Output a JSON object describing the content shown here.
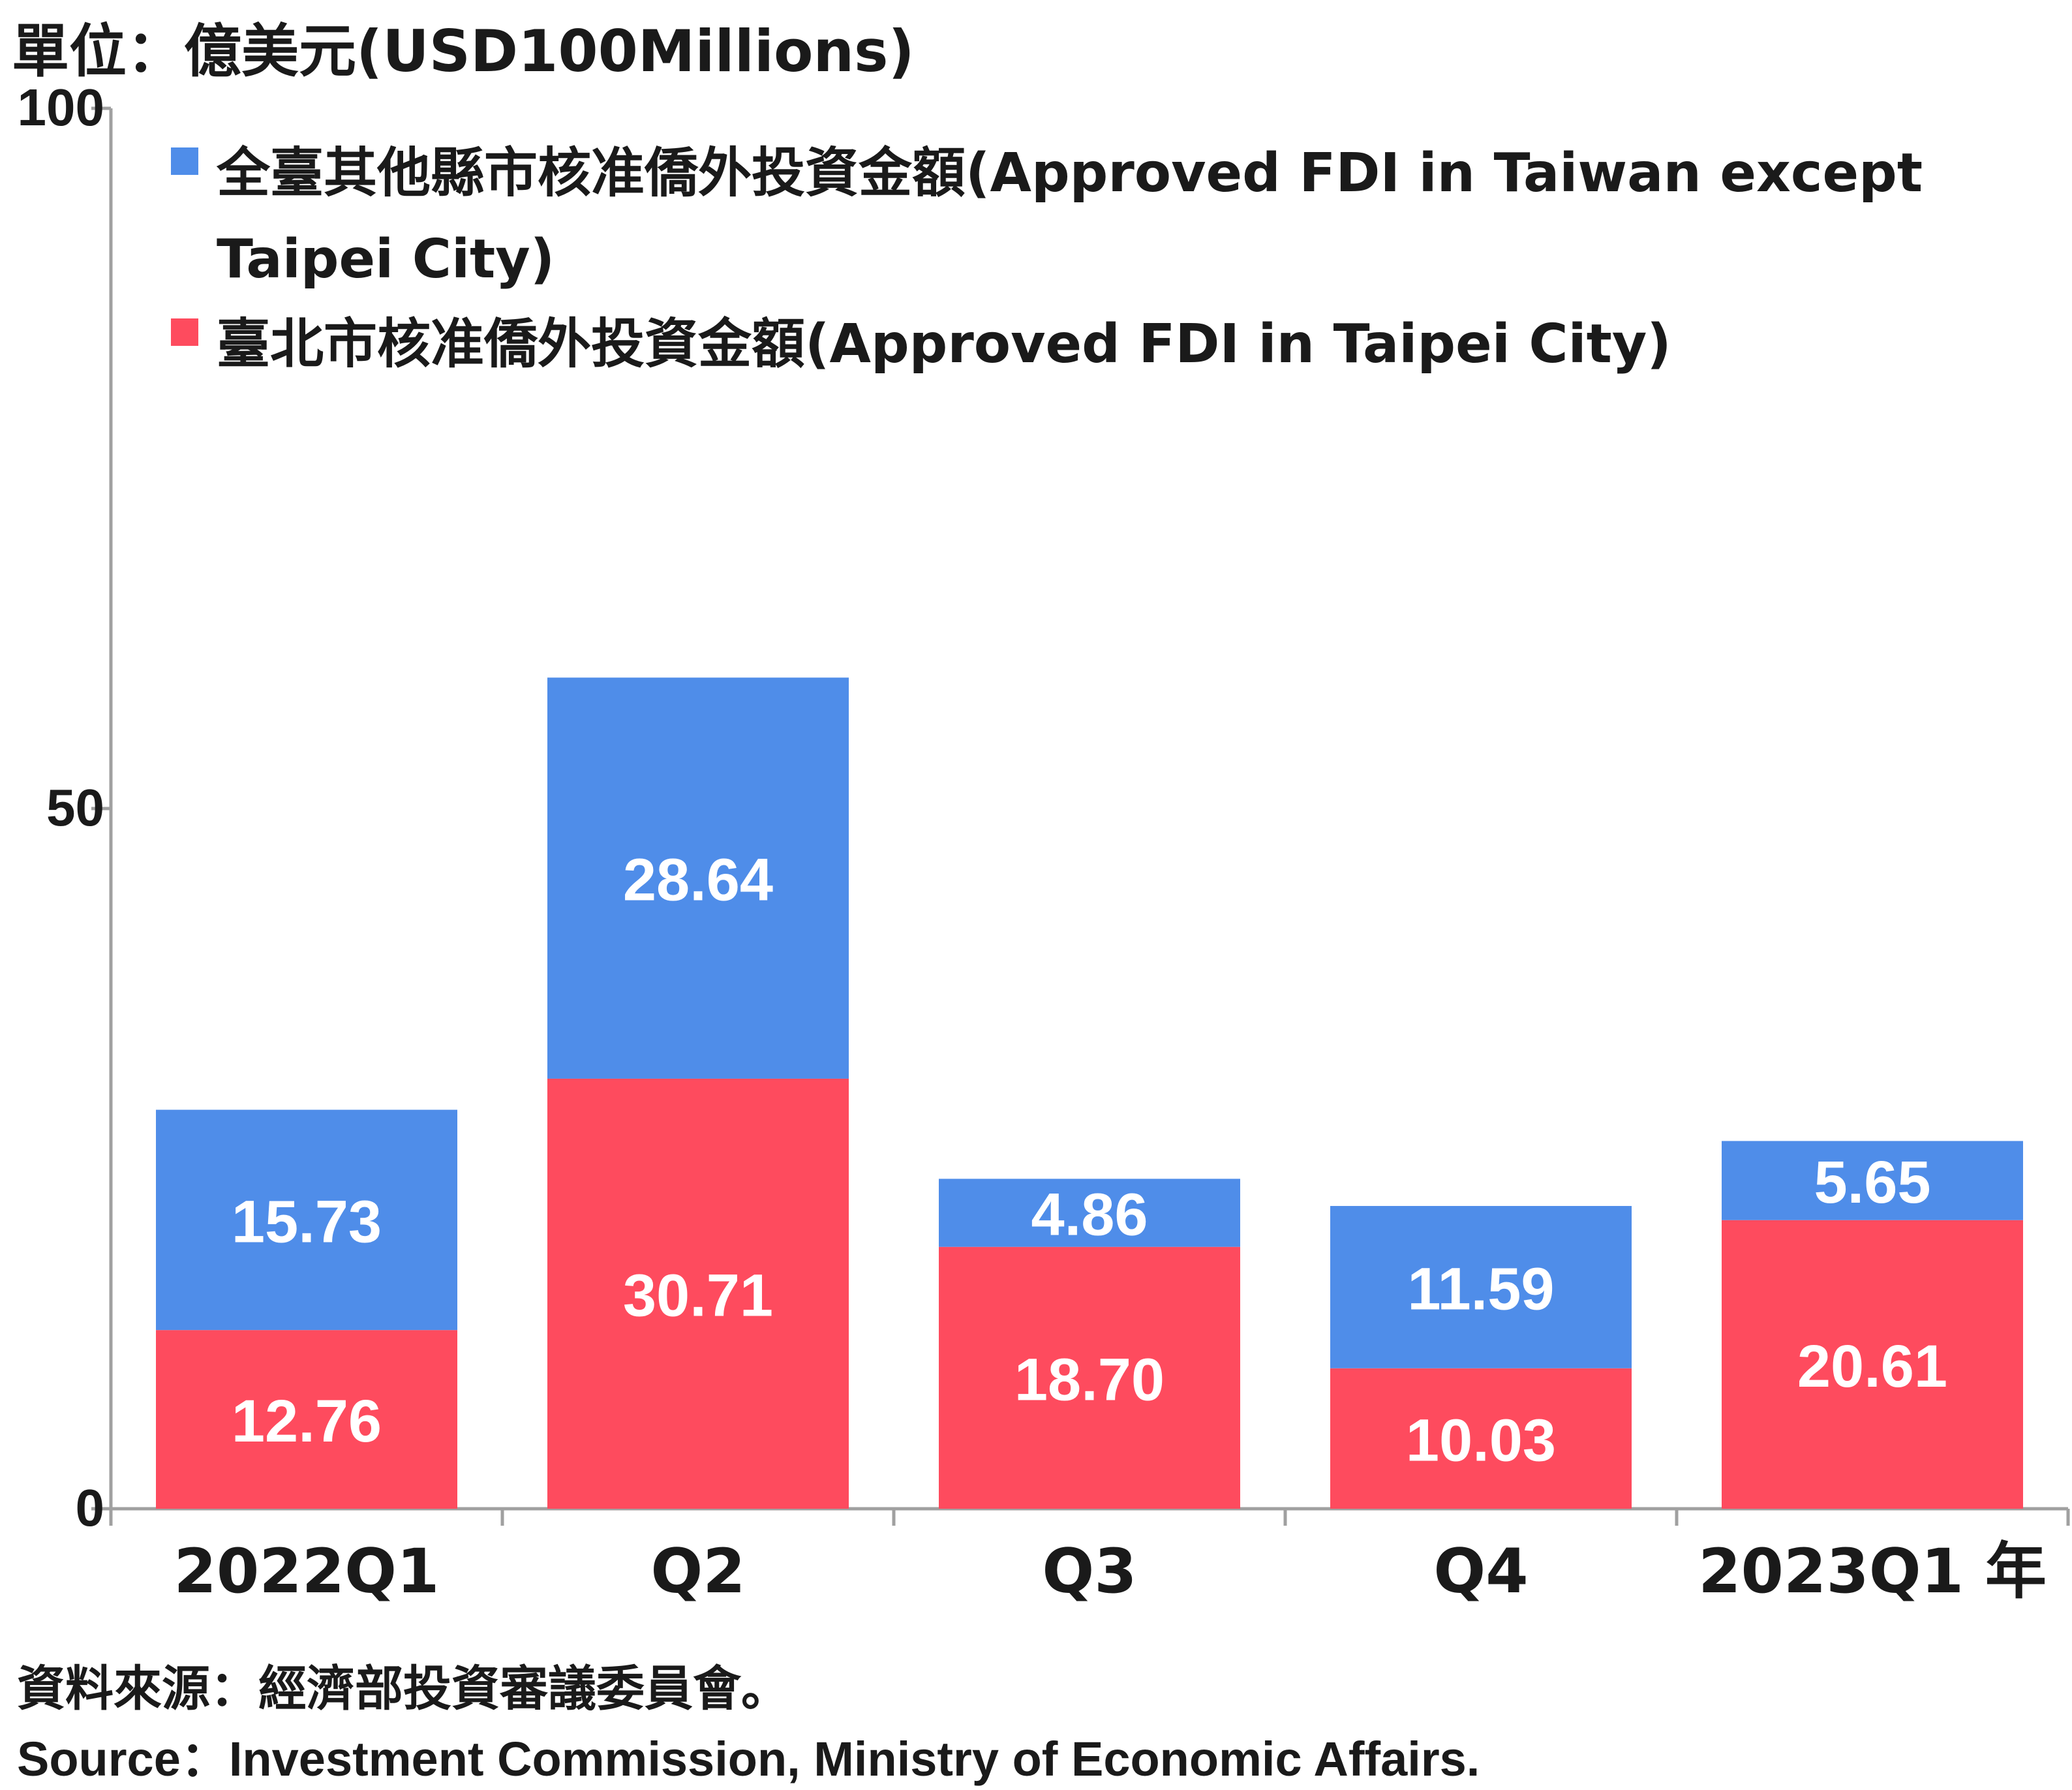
{
  "unit_label": "單位：億美元(USD100Millions)",
  "source_zh": "資料來源：經濟部投資審議委員會。",
  "source_en": "Source：Investment Commission, Ministry of Economic Affairs.",
  "colors": {
    "other": "#4f8de9",
    "taipei": "#fe4b5e",
    "axis": "#a0a0a0"
  },
  "chart_data": {
    "type": "bar",
    "stacked": true,
    "categories": [
      "2022Q1",
      "Q2",
      "Q3",
      "Q4",
      "2023Q1 年"
    ],
    "ylim": [
      0,
      100
    ],
    "yticks": [
      "0",
      "50",
      "100"
    ],
    "legend_position": "top-left",
    "series": [
      {
        "name": "臺北市核准僑外投資金額(Approved FDI in Taipei City)",
        "color": "#fe4b5e",
        "values": [
          12.76,
          30.71,
          18.7,
          10.03,
          20.61
        ],
        "labels": [
          "12.76",
          "30.71",
          "18.70",
          "10.03",
          "20.61"
        ]
      },
      {
        "name": "全臺其他縣市核准僑外投資金額(Approved FDI in Taiwan except Taipei City)",
        "color": "#4f8de9",
        "values": [
          15.73,
          28.64,
          4.86,
          11.59,
          5.65
        ],
        "labels": [
          "15.73",
          "28.64",
          "4.86",
          "11.59",
          "5.65"
        ]
      }
    ]
  }
}
